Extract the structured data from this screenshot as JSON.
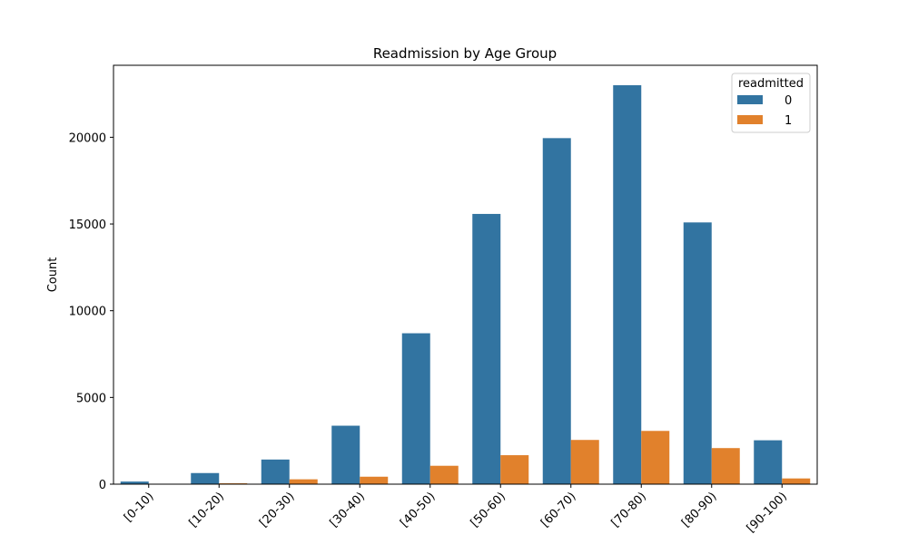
{
  "chart_data": {
    "type": "bar",
    "title": "Readmission by Age Group",
    "xlabel": "",
    "ylabel": "Count",
    "categories": [
      "[0-10)",
      "[10-20)",
      "[20-30)",
      "[30-40)",
      "[40-50)",
      "[50-60)",
      "[60-70)",
      "[70-80)",
      "[80-90)",
      "[90-100)"
    ],
    "series": [
      {
        "name": "0",
        "color": "#3274a1",
        "values": [
          150,
          640,
          1420,
          3370,
          8700,
          15580,
          19950,
          23000,
          15090,
          2530
        ]
      },
      {
        "name": "1",
        "color": "#e1812c",
        "values": [
          5,
          50,
          280,
          430,
          1060,
          1670,
          2550,
          3070,
          2080,
          330
        ]
      }
    ],
    "ylim": [
      0,
      24150
    ],
    "yticks": [
      0,
      5000,
      10000,
      15000,
      20000
    ],
    "legend": {
      "title": "readmitted",
      "placement": "top-right"
    },
    "grid": false
  }
}
